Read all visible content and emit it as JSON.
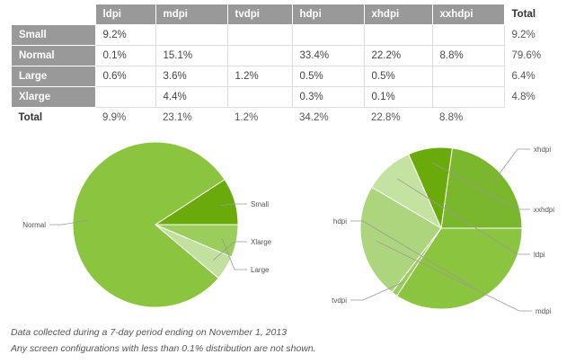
{
  "table": {
    "columns": [
      "ldpi",
      "mdpi",
      "tvdpi",
      "hdpi",
      "xhdpi",
      "xxhdpi"
    ],
    "total_header": "Total",
    "rows": [
      {
        "label": "Small",
        "cells": [
          "9.2%",
          "",
          "",
          "",
          "",
          ""
        ],
        "total": "9.2%"
      },
      {
        "label": "Normal",
        "cells": [
          "0.1%",
          "15.1%",
          "",
          "33.4%",
          "22.2%",
          "8.8%"
        ],
        "total": "79.6%"
      },
      {
        "label": "Large",
        "cells": [
          "0.6%",
          "3.6%",
          "1.2%",
          "0.5%",
          "0.5%",
          ""
        ],
        "total": "6.4%"
      },
      {
        "label": "Xlarge",
        "cells": [
          "",
          "4.4%",
          "",
          "0.3%",
          "0.1%",
          ""
        ],
        "total": "4.8%"
      }
    ],
    "footer": {
      "label": "Total",
      "cells": [
        "9.9%",
        "23.1%",
        "1.2%",
        "34.2%",
        "22.8%",
        "8.8%"
      ]
    }
  },
  "chart_data": [
    {
      "type": "pie",
      "title": "",
      "labels": [
        "Small",
        "Normal",
        "Large",
        "Xlarge"
      ],
      "values": [
        9.2,
        79.6,
        6.4,
        4.8
      ],
      "colors": [
        "#6aaa0b",
        "#8bc53f",
        "#9bcd5c",
        "#c2e09e"
      ]
    },
    {
      "type": "pie",
      "title": "",
      "labels": [
        "ldpi",
        "mdpi",
        "tvdpi",
        "hdpi",
        "xhdpi",
        "xxhdpi"
      ],
      "values": [
        9.9,
        23.1,
        1.2,
        34.2,
        22.8,
        8.8
      ],
      "colors": [
        "#c4e2a0",
        "#add57d",
        "#9bcd5c",
        "#8bc53f",
        "#7ab72d",
        "#6aaa0b"
      ]
    }
  ],
  "notes": [
    "Data collected during a 7-day period ending on November 1, 2013",
    "Any screen configurations with less than 0.1% distribution are not shown."
  ]
}
